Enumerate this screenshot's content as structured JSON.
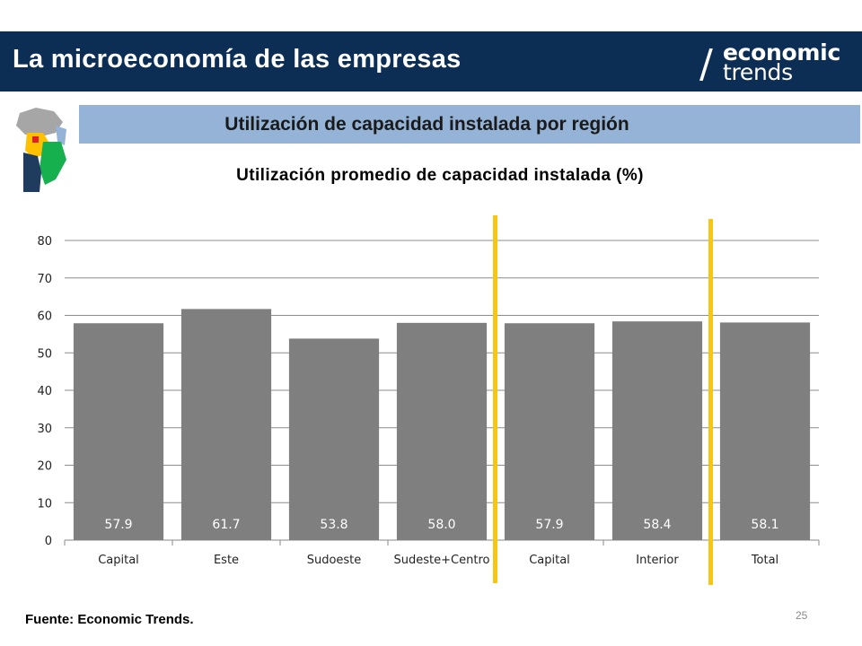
{
  "header": {
    "title": "La microeconomía de las empresas"
  },
  "logo": {
    "line1": "economic",
    "line2": "trends"
  },
  "section": {
    "title": "Utilización de capacidad instalada por región"
  },
  "chart_data": {
    "type": "bar",
    "title": "Utilización promedio de capacidad instalada (%)",
    "categories": [
      "Capital",
      "Este",
      "Sudoeste",
      "Sudeste+Centro",
      "Capital",
      "Interior",
      "Total"
    ],
    "values": [
      57.9,
      61.7,
      53.8,
      58.0,
      57.9,
      58.4,
      58.1
    ],
    "data_labels": [
      "57.9",
      "61.7",
      "53.8",
      "58.0",
      "57.9",
      "58.4",
      "58.1"
    ],
    "ylim": [
      0,
      80
    ],
    "yticks": [
      0,
      10,
      20,
      30,
      40,
      50,
      60,
      70,
      80
    ],
    "grid": true,
    "bar_color": "#7f7f7f",
    "separator_color": "#f5c518"
  },
  "footer": {
    "source": "Fuente: Economic Trends.",
    "page": "25"
  },
  "colors": {
    "header_bg": "#0d2e54",
    "section_bg": "#94b3d6"
  }
}
